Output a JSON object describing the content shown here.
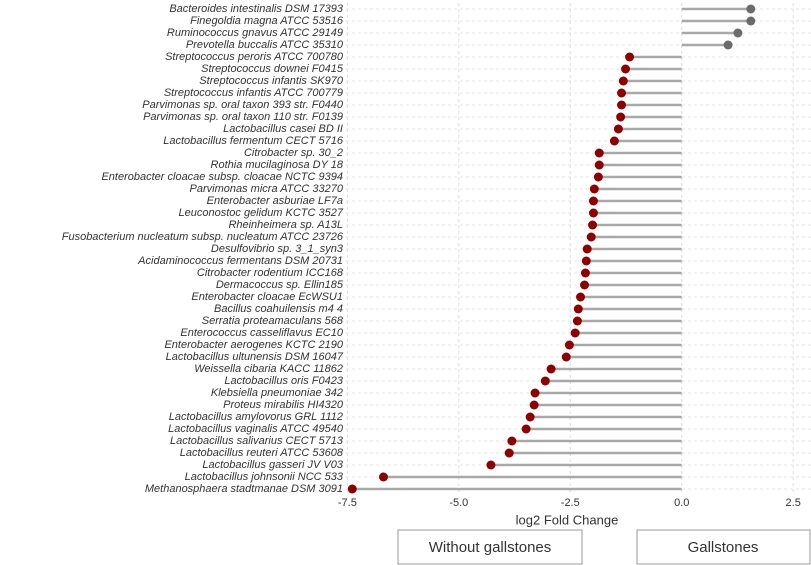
{
  "chart_data": {
    "type": "lollipop",
    "x_label": "log2 Fold Change",
    "categories": [
      "Bacteroides intestinalis DSM 17393",
      "Finegoldia magna ATCC 53516",
      "Ruminococcus gnavus ATCC 29149",
      "Prevotella buccalis ATCC 35310",
      "Streptococcus peroris ATCC 700780",
      "Streptococcus downei F0415",
      "Streptococcus infantis SK970",
      "Streptococcus infantis ATCC 700779",
      "Parvimonas sp. oral taxon 393 str. F0440",
      "Parvimonas sp. oral taxon 110 str. F0139",
      "Lactobacillus casei BD II",
      "Lactobacillus fermentum CECT 5716",
      "Citrobacter sp. 30_2",
      "Rothia mucilaginosa DY 18",
      "Enterobacter cloacae subsp. cloacae NCTC 9394",
      "Parvimonas micra ATCC 33270",
      "Enterobacter asburiae LF7a",
      "Leuconostoc gelidum KCTC 3527",
      "Rheinheimera sp. A13L",
      "Fusobacterium nucleatum subsp. nucleatum ATCC 23726",
      "Desulfovibrio sp. 3_1_syn3",
      "Acidaminococcus fermentans DSM 20731",
      "Citrobacter rodentium ICC168",
      "Dermacoccus sp. Ellin185",
      "Enterobacter cloacae EcWSU1",
      "Bacillus coahuilensis m4 4",
      "Serratia proteamaculans 568",
      "Enterococcus casseliflavus EC10",
      "Enterobacter aerogenes KCTC 2190",
      "Lactobacillus ultunensis DSM 16047",
      "Weissella cibaria KACC 11862",
      "Lactobacillus oris F0423",
      "Klebsiella pneumoniae 342",
      "Proteus mirabilis HI4320",
      "Lactobacillus amylovorus GRL 1112",
      "Lactobacillus vaginalis ATCC 49540",
      "Lactobacillus salivarius CECT 5713",
      "Lactobacillus reuteri ATCC 53608",
      "Lactobacillus gasseri JV V03",
      "Lactobacillus johnsonii NCC 533",
      "Methanosphaera stadtmanae DSM 3091"
    ],
    "values": [
      1.55,
      1.55,
      1.26,
      1.04,
      -1.17,
      -1.26,
      -1.31,
      -1.35,
      -1.35,
      -1.37,
      -1.42,
      -1.51,
      -1.85,
      -1.85,
      -1.87,
      -1.96,
      -1.98,
      -1.98,
      -2.0,
      -2.03,
      -2.12,
      -2.14,
      -2.16,
      -2.18,
      -2.27,
      -2.32,
      -2.34,
      -2.39,
      -2.52,
      -2.59,
      -2.93,
      -3.06,
      -3.29,
      -3.31,
      -3.4,
      -3.49,
      -3.81,
      -3.87,
      -4.28,
      -6.69,
      -7.39
    ],
    "positive_color": "#6b6b6b",
    "negative_color": "#8b0000",
    "stem_color": "#a8a8a8",
    "xlim": [
      -7.8,
      2.9
    ],
    "xticks": [
      -7.5,
      {
        "value": -5,
        "label": "-5.0"
      },
      -2.5,
      {
        "value": 0,
        "label": "0.0"
      },
      2.5
    ],
    "grid": true,
    "group_labels": [
      "Without gallstones",
      "Gallstones"
    ]
  }
}
